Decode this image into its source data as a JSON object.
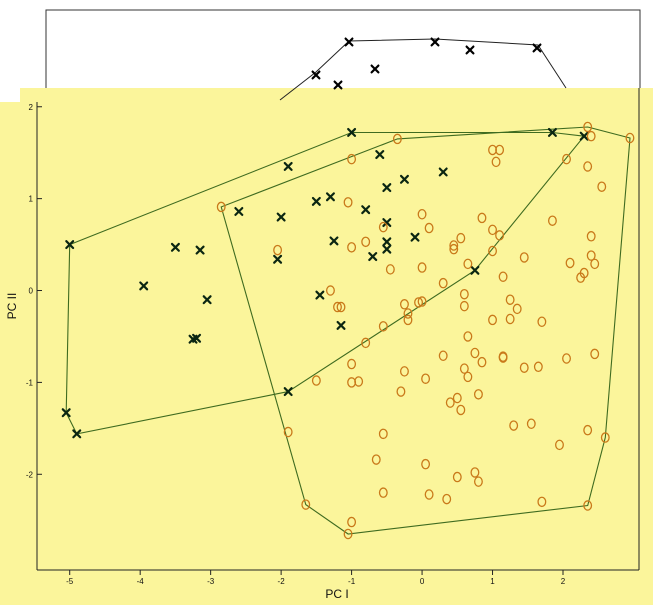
{
  "chart_data": {
    "type": "scatter",
    "title": "",
    "xlabel": "PC I",
    "ylabel": "PC II",
    "xlim": [
      -5.45,
      3.05
    ],
    "ylim": [
      -3.02,
      2.03
    ],
    "x_ticks": [
      "-5",
      "-4",
      "-3",
      "-2",
      "-1",
      "0",
      "1",
      "2"
    ],
    "y_ticks": [
      "-2",
      "-1",
      "0",
      "1",
      "2"
    ],
    "grid": false,
    "colors": {
      "background": "#fbf59b",
      "group_cross": "#0b2612",
      "group_circle": "#c9791a",
      "hull": "#3f6b20",
      "top_hull": "#222222"
    },
    "series": [
      {
        "marker": "x",
        "points": [
          [
            -5.0,
            0.5
          ],
          [
            -5.05,
            -1.33
          ],
          [
            -4.9,
            -1.56
          ],
          [
            -3.95,
            0.05
          ],
          [
            -3.5,
            0.47
          ],
          [
            -3.15,
            0.44
          ],
          [
            -3.05,
            -0.1
          ],
          [
            -3.2,
            -0.52
          ],
          [
            -3.25,
            -0.53
          ],
          [
            -2.6,
            0.86
          ],
          [
            -2.05,
            0.34
          ],
          [
            -2.0,
            0.8
          ],
          [
            -1.9,
            1.35
          ],
          [
            -1.9,
            -1.1
          ],
          [
            -1.5,
            0.97
          ],
          [
            -1.45,
            -0.05
          ],
          [
            -1.3,
            1.02
          ],
          [
            -1.25,
            0.54
          ],
          [
            -1.15,
            -0.38
          ],
          [
            -1.0,
            1.72
          ],
          [
            -0.8,
            0.88
          ],
          [
            -0.7,
            0.37
          ],
          [
            -0.6,
            1.48
          ],
          [
            -0.5,
            1.12
          ],
          [
            -0.5,
            0.74
          ],
          [
            -0.5,
            0.53
          ],
          [
            -0.5,
            0.45
          ],
          [
            -0.25,
            1.21
          ],
          [
            -0.1,
            0.58
          ],
          [
            0.3,
            1.29
          ],
          [
            0.75,
            0.22
          ],
          [
            1.85,
            1.72
          ],
          [
            2.3,
            1.68
          ]
        ]
      },
      {
        "marker": "o",
        "points": [
          [
            -2.85,
            0.91
          ],
          [
            -2.05,
            0.44
          ],
          [
            -1.9,
            -1.54
          ],
          [
            -1.65,
            -2.33
          ],
          [
            -1.5,
            -0.98
          ],
          [
            -1.3,
            0.0
          ],
          [
            -1.2,
            -0.18
          ],
          [
            -1.15,
            -0.18
          ],
          [
            -1.05,
            0.96
          ],
          [
            -1.0,
            1.43
          ],
          [
            -1.0,
            0.47
          ],
          [
            -1.0,
            -0.8
          ],
          [
            -1.0,
            -1.0
          ],
          [
            -1.0,
            -2.52
          ],
          [
            -1.05,
            -2.65
          ],
          [
            -0.9,
            -0.99
          ],
          [
            -0.8,
            0.53
          ],
          [
            -0.8,
            -0.57
          ],
          [
            -0.65,
            -1.84
          ],
          [
            -0.55,
            0.69
          ],
          [
            -0.55,
            -0.39
          ],
          [
            -0.55,
            -1.56
          ],
          [
            -0.55,
            -2.2
          ],
          [
            -0.45,
            0.23
          ],
          [
            -0.35,
            1.65
          ],
          [
            -0.3,
            -1.1
          ],
          [
            -0.25,
            -0.88
          ],
          [
            -0.25,
            -0.15
          ],
          [
            -0.2,
            -0.25
          ],
          [
            -0.2,
            -0.32
          ],
          [
            -0.05,
            -0.13
          ],
          [
            0.0,
            0.25
          ],
          [
            0.0,
            -0.12
          ],
          [
            0.0,
            0.83
          ],
          [
            0.05,
            -0.96
          ],
          [
            0.05,
            -1.89
          ],
          [
            0.1,
            0.68
          ],
          [
            0.1,
            -2.22
          ],
          [
            0.3,
            0.08
          ],
          [
            0.3,
            -0.71
          ],
          [
            0.35,
            -2.27
          ],
          [
            0.4,
            -1.22
          ],
          [
            0.45,
            0.49
          ],
          [
            0.45,
            0.45
          ],
          [
            0.5,
            -1.17
          ],
          [
            0.5,
            -2.03
          ],
          [
            0.55,
            0.57
          ],
          [
            0.55,
            -1.3
          ],
          [
            0.6,
            -0.04
          ],
          [
            0.6,
            -0.17
          ],
          [
            0.6,
            -0.85
          ],
          [
            0.65,
            0.29
          ],
          [
            0.65,
            -0.5
          ],
          [
            0.65,
            -0.94
          ],
          [
            0.75,
            -0.68
          ],
          [
            0.75,
            -1.98
          ],
          [
            0.8,
            -2.08
          ],
          [
            0.8,
            -1.13
          ],
          [
            0.85,
            0.79
          ],
          [
            0.85,
            -0.78
          ],
          [
            1.0,
            1.53
          ],
          [
            1.0,
            0.66
          ],
          [
            1.0,
            -0.32
          ],
          [
            1.0,
            0.43
          ],
          [
            1.05,
            1.4
          ],
          [
            1.1,
            1.53
          ],
          [
            1.1,
            0.6
          ],
          [
            1.15,
            0.15
          ],
          [
            1.15,
            -0.72
          ],
          [
            1.15,
            -0.73
          ],
          [
            1.25,
            -0.1
          ],
          [
            1.25,
            -0.31
          ],
          [
            1.3,
            -1.47
          ],
          [
            1.35,
            -0.2
          ],
          [
            1.45,
            -0.84
          ],
          [
            1.45,
            0.36
          ],
          [
            1.55,
            -1.45
          ],
          [
            1.65,
            -0.83
          ],
          [
            1.7,
            -0.34
          ],
          [
            1.7,
            -2.3
          ],
          [
            1.85,
            0.76
          ],
          [
            1.95,
            -1.68
          ],
          [
            2.05,
            -0.74
          ],
          [
            2.05,
            1.43
          ],
          [
            2.1,
            0.3
          ],
          [
            2.25,
            0.14
          ],
          [
            2.3,
            0.19
          ],
          [
            2.35,
            -1.52
          ],
          [
            2.35,
            -2.34
          ],
          [
            2.35,
            1.78
          ],
          [
            2.4,
            0.59
          ],
          [
            2.4,
            0.38
          ],
          [
            2.4,
            1.68
          ],
          [
            2.45,
            0.29
          ],
          [
            2.45,
            -0.69
          ],
          [
            2.35,
            1.35
          ],
          [
            2.55,
            1.13
          ],
          [
            2.6,
            -1.6
          ],
          [
            2.95,
            1.66
          ]
        ]
      }
    ]
  }
}
